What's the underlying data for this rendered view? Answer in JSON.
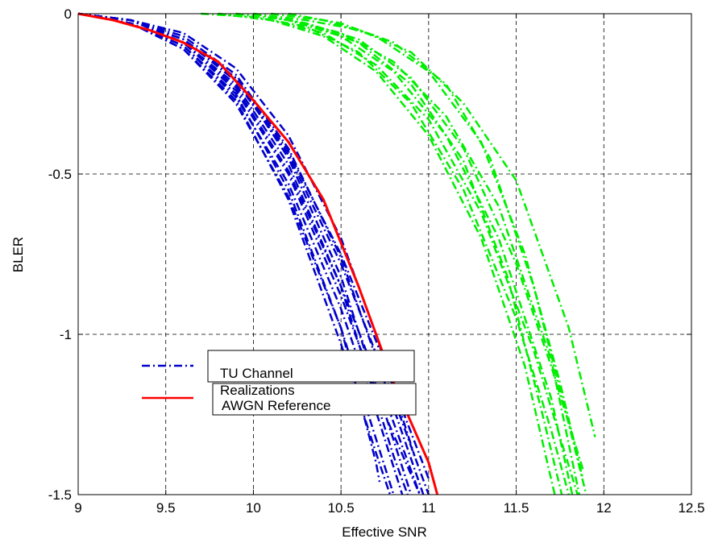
{
  "chart_data": {
    "type": "line",
    "xlabel": "Effective SNR",
    "ylabel": "BLER",
    "xlim": [
      9,
      12.5
    ],
    "ylim": [
      -1.5,
      0
    ],
    "x_ticks": [
      "9",
      "9.5",
      "10",
      "10.5",
      "11",
      "11.5",
      "12",
      "12.5"
    ],
    "y_ticks": [
      "0",
      "-0.5",
      "-1",
      "-1.5"
    ],
    "grid": true,
    "legend": {
      "placement": "center-left",
      "entries": [
        {
          "label_line1": "TU Channel",
          "label_line2": "Realizations",
          "color": "#0000cc",
          "style": "dash-dot"
        },
        {
          "label_line1": "AWGN Reference",
          "color": "#ff0000",
          "style": "solid"
        }
      ]
    },
    "series": [
      {
        "name": "AWGN Reference",
        "color": "#ff0000",
        "style": "solid",
        "x": [
          9.0,
          9.2,
          9.4,
          9.6,
          9.8,
          10.0,
          10.2,
          10.4,
          10.6,
          10.8,
          11.0,
          11.05
        ],
        "y": [
          0.0,
          -0.02,
          -0.05,
          -0.09,
          -0.15,
          -0.27,
          -0.4,
          -0.58,
          -0.85,
          -1.15,
          -1.4,
          -1.5
        ]
      },
      {
        "color": "#0000cc",
        "style": "dash-dot",
        "x": [
          9.0,
          9.3,
          9.6,
          9.9,
          10.2,
          10.5,
          10.65,
          10.8
        ],
        "y": [
          0.0,
          -0.03,
          -0.11,
          -0.28,
          -0.57,
          -0.98,
          -1.24,
          -1.5
        ]
      },
      {
        "color": "#0000cc",
        "style": "dash-dot",
        "x": [
          9.0,
          9.3,
          9.6,
          9.9,
          10.2,
          10.5,
          10.7,
          10.85
        ],
        "y": [
          0.0,
          -0.03,
          -0.1,
          -0.26,
          -0.53,
          -0.92,
          -1.24,
          -1.5
        ]
      },
      {
        "color": "#0000cc",
        "style": "dash-dot",
        "x": [
          9.0,
          9.3,
          9.6,
          9.9,
          10.2,
          10.5,
          10.75,
          10.95
        ],
        "y": [
          0.0,
          -0.02,
          -0.09,
          -0.23,
          -0.49,
          -0.85,
          -1.2,
          -1.5
        ]
      },
      {
        "color": "#0000cc",
        "style": "dash-dot",
        "x": [
          9.0,
          9.3,
          9.6,
          9.9,
          10.2,
          10.5,
          10.8,
          11.0
        ],
        "y": [
          0.0,
          -0.02,
          -0.08,
          -0.21,
          -0.44,
          -0.78,
          -1.2,
          -1.5
        ]
      },
      {
        "color": "#0000cc",
        "style": "dash-dot",
        "x": [
          9.0,
          9.3,
          9.6,
          9.9,
          10.2,
          10.5,
          10.8,
          10.97
        ],
        "y": [
          0.0,
          -0.02,
          -0.07,
          -0.19,
          -0.42,
          -0.76,
          -1.23,
          -1.5
        ]
      },
      {
        "color": "#0000cc",
        "style": "dash-dot",
        "x": [
          9.0,
          9.3,
          9.6,
          9.9,
          10.2,
          10.5,
          10.8,
          10.9
        ],
        "y": [
          0.0,
          -0.02,
          -0.08,
          -0.2,
          -0.45,
          -0.82,
          -1.33,
          -1.5
        ]
      },
      {
        "color": "#0000cc",
        "style": "dash-dot",
        "x": [
          9.0,
          9.3,
          9.6,
          9.9,
          10.2,
          10.5,
          10.7,
          10.72
        ],
        "y": [
          0.0,
          -0.03,
          -0.1,
          -0.25,
          -0.55,
          -0.98,
          -1.4,
          -1.46
        ]
      },
      {
        "color": "#0000cc",
        "style": "dash-dot",
        "x": [
          9.0,
          9.3,
          9.6,
          9.9,
          10.2,
          10.5,
          10.75,
          10.95
        ],
        "y": [
          0.0,
          -0.02,
          -0.09,
          -0.24,
          -0.5,
          -0.88,
          -1.25,
          -1.5
        ]
      },
      {
        "color": "#0000cc",
        "style": "dash-dot",
        "x": [
          9.0,
          9.3,
          9.6,
          9.9,
          10.2,
          10.5,
          10.7,
          10.92
        ],
        "y": [
          0.0,
          -0.02,
          -0.06,
          -0.17,
          -0.38,
          -0.7,
          -1.0,
          -1.38
        ]
      },
      {
        "color": "#0000cc",
        "style": "dash-dot",
        "x": [
          9.0,
          9.3,
          9.6,
          9.9,
          10.2,
          10.5,
          10.8,
          10.88
        ],
        "y": [
          0.0,
          -0.02,
          -0.09,
          -0.22,
          -0.47,
          -0.85,
          -1.38,
          -1.5
        ]
      },
      {
        "color": "#0000cc",
        "style": "dash-dot",
        "x": [
          9.0,
          9.3,
          9.6,
          9.9,
          10.2,
          10.5,
          10.7,
          11.0
        ],
        "y": [
          0.0,
          -0.02,
          -0.08,
          -0.2,
          -0.43,
          -0.75,
          -1.02,
          -1.45
        ]
      },
      {
        "color": "#0000cc",
        "style": "dash-dot",
        "x": [
          9.0,
          9.3,
          9.6,
          9.9,
          10.2,
          10.5,
          10.7,
          10.78
        ],
        "y": [
          0.0,
          -0.03,
          -0.11,
          -0.27,
          -0.58,
          -1.03,
          -1.37,
          -1.5
        ]
      },
      {
        "color": "#00ee00",
        "style": "dash-dot",
        "x": [
          9.7,
          10.0,
          10.3,
          10.6,
          10.9,
          11.2,
          11.5,
          11.7,
          11.8
        ],
        "y": [
          0.0,
          -0.01,
          -0.04,
          -0.12,
          -0.28,
          -0.55,
          -0.95,
          -1.3,
          -1.5
        ]
      },
      {
        "color": "#00ee00",
        "style": "dash-dot",
        "x": [
          9.8,
          10.1,
          10.4,
          10.7,
          11.0,
          11.3,
          11.6,
          11.75,
          11.85
        ],
        "y": [
          0.0,
          -0.02,
          -0.06,
          -0.16,
          -0.33,
          -0.62,
          -1.05,
          -1.32,
          -1.5
        ]
      },
      {
        "color": "#00ee00",
        "style": "dash-dot",
        "x": [
          9.8,
          10.1,
          10.4,
          10.7,
          11.0,
          11.3,
          11.55,
          11.72
        ],
        "y": [
          0.0,
          -0.02,
          -0.07,
          -0.18,
          -0.38,
          -0.7,
          -1.1,
          -1.5
        ]
      },
      {
        "color": "#00ee00",
        "style": "dash-dot",
        "x": [
          9.9,
          10.2,
          10.5,
          10.8,
          11.1,
          11.4,
          11.7,
          11.86
        ],
        "y": [
          0.0,
          -0.02,
          -0.06,
          -0.15,
          -0.32,
          -0.6,
          -1.08,
          -1.5
        ]
      },
      {
        "color": "#00ee00",
        "style": "dash-dot",
        "x": [
          9.9,
          10.2,
          10.5,
          10.8,
          11.1,
          11.4,
          11.7,
          11.82
        ],
        "y": [
          0.0,
          -0.02,
          -0.07,
          -0.18,
          -0.38,
          -0.7,
          -1.2,
          -1.5
        ]
      },
      {
        "color": "#00ee00",
        "style": "dash-dot",
        "x": [
          10.0,
          10.3,
          10.6,
          10.9,
          11.2,
          11.5,
          11.8,
          11.95
        ],
        "y": [
          0.0,
          -0.02,
          -0.05,
          -0.12,
          -0.28,
          -0.52,
          -0.98,
          -1.32
        ]
      },
      {
        "color": "#00ee00",
        "style": "dash-dot",
        "x": [
          10.0,
          10.3,
          10.6,
          10.9,
          11.2,
          11.5,
          11.7,
          11.88
        ],
        "y": [
          0.0,
          -0.03,
          -0.08,
          -0.2,
          -0.42,
          -0.78,
          -1.1,
          -1.42
        ]
      },
      {
        "color": "#00ee00",
        "style": "dash-dot",
        "x": [
          10.0,
          10.3,
          10.6,
          10.9,
          11.2,
          11.45,
          11.65,
          11.76
        ],
        "y": [
          0.0,
          -0.03,
          -0.09,
          -0.22,
          -0.46,
          -0.82,
          -1.25,
          -1.5
        ]
      },
      {
        "color": "#00ee00",
        "style": "dash-dot",
        "x": [
          10.1,
          10.4,
          10.7,
          11.0,
          11.3,
          11.55,
          11.75,
          11.88
        ],
        "y": [
          0.0,
          -0.02,
          -0.07,
          -0.18,
          -0.4,
          -0.75,
          -1.15,
          -1.45
        ]
      },
      {
        "color": "#00ee00",
        "style": "dash-dot",
        "x": [
          10.2,
          10.5,
          10.8,
          11.1,
          11.35,
          11.6,
          11.8,
          11.9
        ],
        "y": [
          0.0,
          -0.03,
          -0.09,
          -0.22,
          -0.45,
          -0.85,
          -1.28,
          -1.5
        ]
      }
    ]
  }
}
